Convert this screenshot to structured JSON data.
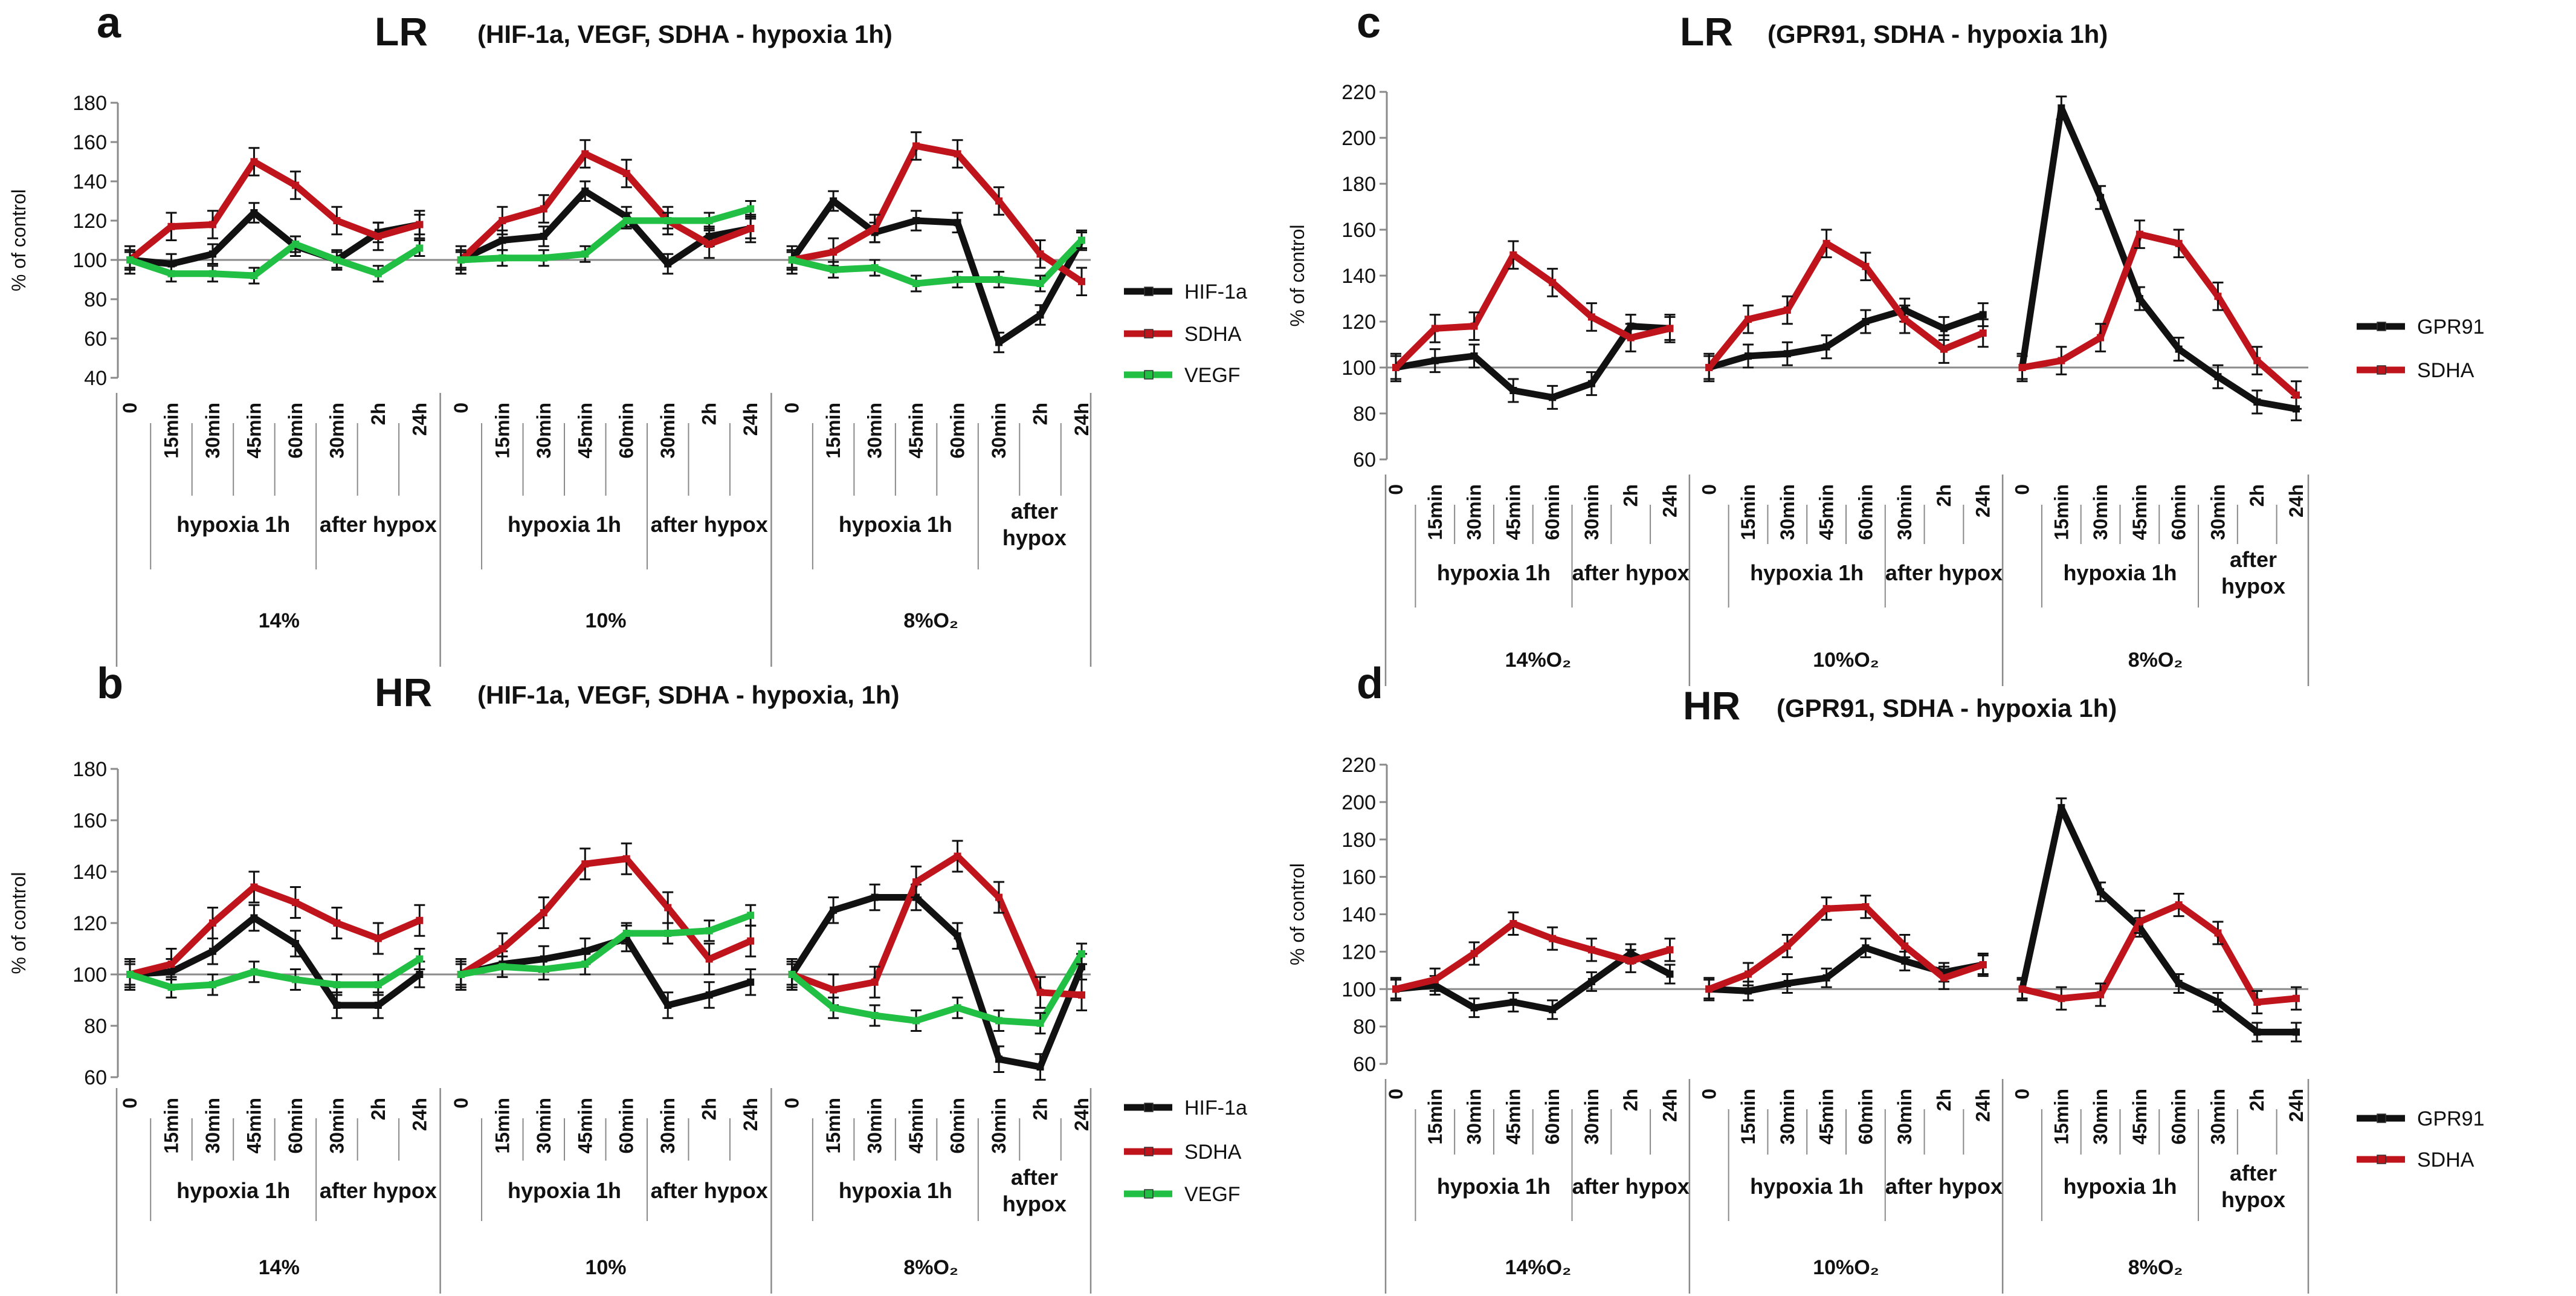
{
  "colors": {
    "HIF-1a": "#111111",
    "SDHA": "#c0141c",
    "VEGF": "#22bf45",
    "GPR91": "#111111",
    "axis": "#8a8a8a",
    "text": "#111111"
  },
  "chart_data": [
    {
      "type": "line",
      "panel_letter": "a",
      "group": "LR",
      "title": "(HIF-1a, VEGF, SDHA  -  hypoxia 1h)",
      "ylabel": "% of control",
      "ylim": [
        40,
        180
      ],
      "yticks": [
        40,
        60,
        80,
        100,
        120,
        140,
        160,
        180
      ],
      "baseline": 100,
      "conditions": [
        {
          "name": "14%",
          "labels": [
            "0",
            "15min",
            "30min",
            "45min",
            "60min",
            "30min",
            "2h",
            "24h"
          ],
          "phases": [
            "hypoxia 1h",
            "after hypox"
          ]
        },
        {
          "name": "10%",
          "labels": [
            "0",
            "15min",
            "30min",
            "45min",
            "60min",
            "30min",
            "2h",
            "24h"
          ],
          "phases": [
            "hypoxia 1h",
            "after hypox"
          ]
        },
        {
          "name": "8%O₂",
          "labels": [
            "0",
            "15min",
            "30min",
            "45min",
            "60min",
            "30min",
            "2h",
            "24h"
          ],
          "phases": [
            "hypoxia 1h",
            "after\nhypox"
          ]
        }
      ],
      "series": [
        {
          "name": "HIF-1a",
          "values": [
            [
              100,
              98,
              103,
              124,
              107,
              100,
              114,
              118
            ],
            [
              100,
              110,
              112,
              135,
              122,
              98,
              112,
              116
            ],
            [
              100,
              130,
              114,
              120,
              119,
              58,
              72,
              110
            ]
          ],
          "err": 5
        },
        {
          "name": "SDHA",
          "values": [
            [
              100,
              117,
              118,
              150,
              138,
              120,
              112,
              118
            ],
            [
              100,
              120,
              126,
              154,
              144,
              120,
              108,
              116
            ],
            [
              100,
              104,
              116,
              158,
              154,
              130,
              103,
              89
            ]
          ],
          "err": 7
        },
        {
          "name": "VEGF",
          "values": [
            [
              100,
              93,
              93,
              92,
              108,
              100,
              93,
              106
            ],
            [
              100,
              101,
              101,
              103,
              120,
              120,
              120,
              126
            ],
            [
              100,
              95,
              96,
              88,
              90,
              90,
              88,
              110
            ]
          ],
          "err": 4
        }
      ]
    },
    {
      "type": "line",
      "panel_letter": "b",
      "group": "HR",
      "title": "(HIF-1a, VEGF, SDHA  -  hypoxia, 1h)",
      "ylabel": "% of control",
      "ylim": [
        60,
        180
      ],
      "yticks": [
        60,
        80,
        100,
        120,
        140,
        160,
        180
      ],
      "baseline": 100,
      "conditions": [
        {
          "name": "14%",
          "labels": [
            "0",
            "15min",
            "30min",
            "45min",
            "60min",
            "30min",
            "2h",
            "24h"
          ],
          "phases": [
            "hypoxia 1h",
            "after hypox"
          ]
        },
        {
          "name": "10%",
          "labels": [
            "0",
            "15min",
            "30min",
            "45min",
            "60min",
            "30min",
            "2h",
            "24h"
          ],
          "phases": [
            "hypoxia 1h",
            "after hypox"
          ]
        },
        {
          "name": "8%O₂",
          "labels": [
            "0",
            "15min",
            "30min",
            "45min",
            "60min",
            "30min",
            "2h",
            "24h"
          ],
          "phases": [
            "hypoxia 1h",
            "after\nhypox"
          ]
        }
      ],
      "series": [
        {
          "name": "HIF-1a",
          "values": [
            [
              100,
              101,
              109,
              122,
              112,
              88,
              88,
              100
            ],
            [
              100,
              104,
              106,
              109,
              114,
              88,
              92,
              97
            ],
            [
              100,
              125,
              130,
              130,
              115,
              67,
              64,
              103
            ]
          ],
          "err": 5
        },
        {
          "name": "SDHA",
          "values": [
            [
              100,
              104,
              120,
              134,
              128,
              120,
              114,
              121
            ],
            [
              100,
              110,
              124,
              143,
              145,
              126,
              106,
              113
            ],
            [
              100,
              94,
              97,
              136,
              146,
              130,
              93,
              92
            ]
          ],
          "err": 6
        },
        {
          "name": "VEGF",
          "values": [
            [
              100,
              95,
              96,
              101,
              98,
              96,
              96,
              106
            ],
            [
              100,
              103,
              102,
              104,
              116,
              116,
              117,
              123
            ],
            [
              100,
              87,
              84,
              82,
              87,
              82,
              81,
              108
            ]
          ],
          "err": 4
        }
      ]
    },
    {
      "type": "line",
      "panel_letter": "c",
      "group": "LR",
      "title": "(GPR91,  SDHA  - hypoxia 1h)",
      "ylabel": "% of control",
      "ylim": [
        60,
        220
      ],
      "yticks": [
        60,
        80,
        100,
        120,
        140,
        160,
        180,
        200,
        220
      ],
      "baseline": 100,
      "conditions": [
        {
          "name": "14%O₂",
          "labels": [
            "0",
            "15min",
            "30min",
            "45min",
            "60min",
            "30min",
            "2h",
            "24h"
          ],
          "phases": [
            "hypoxia 1h",
            "after hypox"
          ]
        },
        {
          "name": "10%O₂",
          "labels": [
            "0",
            "15min",
            "30min",
            "45min",
            "60min",
            "30min",
            "2h",
            "24h"
          ],
          "phases": [
            "hypoxia 1h",
            "after hypox"
          ]
        },
        {
          "name": "8%O₂",
          "labels": [
            "0",
            "15min",
            "30min",
            "45min",
            "60min",
            "30min",
            "2h",
            "24h"
          ],
          "phases": [
            "hypoxia 1h",
            "after\nhypox"
          ]
        }
      ],
      "series": [
        {
          "name": "GPR91",
          "values": [
            [
              100,
              103,
              105,
              90,
              87,
              93,
              118,
              117
            ],
            [
              100,
              105,
              106,
              109,
              120,
              125,
              117,
              123
            ],
            [
              100,
              213,
              174,
              130,
              108,
              96,
              85,
              82
            ]
          ],
          "err": 5
        },
        {
          "name": "SDHA",
          "values": [
            [
              100,
              117,
              118,
              149,
              137,
              122,
              113,
              117
            ],
            [
              100,
              121,
              125,
              154,
              144,
              121,
              108,
              115
            ],
            [
              100,
              103,
              113,
              158,
              154,
              131,
              103,
              88
            ]
          ],
          "err": 6
        }
      ]
    },
    {
      "type": "line",
      "panel_letter": "d",
      "group": "HR",
      "title": "(GPR91,   SDHA   - hypoxia 1h)",
      "ylabel": "% of control",
      "ylim": [
        60,
        220
      ],
      "yticks": [
        60,
        80,
        100,
        120,
        140,
        160,
        180,
        200,
        220
      ],
      "baseline": 100,
      "conditions": [
        {
          "name": "14%O₂",
          "labels": [
            "0",
            "15min",
            "30min",
            "45min",
            "60min",
            "30min",
            "2h",
            "24h"
          ],
          "phases": [
            "hypoxia 1h",
            "after hypox"
          ]
        },
        {
          "name": "10%O₂",
          "labels": [
            "0",
            "15min",
            "30min",
            "45min",
            "60min",
            "30min",
            "2h",
            "24h"
          ],
          "phases": [
            "hypoxia 1h",
            "after hypox"
          ]
        },
        {
          "name": "8%O₂",
          "labels": [
            "0",
            "15min",
            "30min",
            "45min",
            "60min",
            "30min",
            "2h",
            "24h"
          ],
          "phases": [
            "hypoxia 1h",
            "after\nhypox"
          ]
        }
      ],
      "series": [
        {
          "name": "GPR91",
          "values": [
            [
              100,
              102,
              90,
              93,
              89,
              104,
              119,
              108
            ],
            [
              100,
              99,
              103,
              106,
              122,
              115,
              109,
              113
            ],
            [
              100,
              197,
              152,
              133,
              103,
              93,
              77,
              77
            ]
          ],
          "err": 5
        },
        {
          "name": "SDHA",
          "values": [
            [
              100,
              105,
              119,
              135,
              127,
              121,
              115,
              121
            ],
            [
              100,
              108,
              123,
              143,
              144,
              123,
              106,
              113
            ],
            [
              100,
              95,
              97,
              136,
              145,
              130,
              93,
              95
            ]
          ],
          "err": 6
        }
      ]
    }
  ]
}
